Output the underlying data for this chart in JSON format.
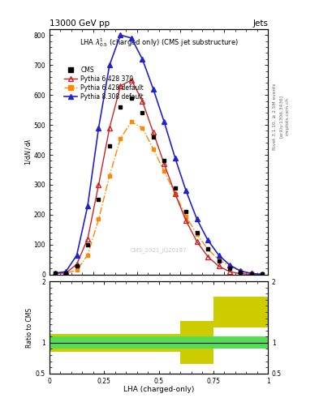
{
  "title_left": "13000 GeV pp",
  "title_right": "Jets",
  "plot_label": "LHA $\\lambda^{1}_{0.5}$ (charged only) (CMS jet substructure)",
  "xlabel": "LHA (charged-only)",
  "watermark": "CMS_2021_JQ20187",
  "right_text1": "Rivet 3.1.10, ≥ 2.5M events",
  "right_text2": "[arXiv:1306.3436]",
  "right_text3": "mcplots.cern.ch",
  "lha_x": [
    0.025,
    0.075,
    0.125,
    0.175,
    0.225,
    0.275,
    0.325,
    0.375,
    0.425,
    0.475,
    0.525,
    0.575,
    0.625,
    0.675,
    0.725,
    0.775,
    0.825,
    0.875,
    0.925,
    0.975
  ],
  "lha_bins": [
    0.0,
    0.05,
    0.1,
    0.15,
    0.2,
    0.25,
    0.3,
    0.35,
    0.4,
    0.45,
    0.5,
    0.55,
    0.6,
    0.65,
    0.7,
    0.75,
    0.8,
    0.85,
    0.9,
    0.95,
    1.0
  ],
  "cms_y": [
    5,
    5,
    30,
    100,
    250,
    430,
    560,
    590,
    540,
    460,
    380,
    290,
    210,
    140,
    85,
    45,
    20,
    8,
    2,
    1
  ],
  "p6_370_y": [
    5,
    5,
    35,
    120,
    300,
    490,
    630,
    650,
    580,
    475,
    370,
    270,
    180,
    110,
    60,
    28,
    10,
    3,
    1,
    0
  ],
  "p6_def_y": [
    5,
    5,
    15,
    65,
    185,
    330,
    455,
    510,
    490,
    420,
    345,
    270,
    195,
    135,
    85,
    50,
    28,
    12,
    4,
    1
  ],
  "p8_def_y": [
    5,
    10,
    65,
    230,
    490,
    700,
    800,
    790,
    720,
    620,
    510,
    390,
    280,
    185,
    115,
    65,
    32,
    12,
    4,
    1
  ],
  "yticks": [
    0,
    100,
    200,
    300,
    400,
    500,
    600,
    700,
    800
  ],
  "ylim_main": [
    0,
    820
  ],
  "ylim_ratio": [
    0.5,
    2.0
  ],
  "xlim": [
    0.0,
    1.0
  ],
  "ratio_bins": [
    0.0,
    0.1,
    0.2,
    0.3,
    0.4,
    0.5,
    0.6,
    0.65,
    0.75,
    1.0
  ],
  "ratio_green_lo": [
    0.9,
    0.9,
    0.9,
    0.9,
    0.9,
    0.9,
    0.9,
    0.9,
    0.9
  ],
  "ratio_green_hi": [
    1.1,
    1.1,
    1.1,
    1.1,
    1.1,
    1.1,
    1.1,
    1.1,
    1.1
  ],
  "ratio_yellow_lo": [
    0.85,
    0.85,
    0.85,
    0.85,
    0.85,
    0.85,
    0.65,
    0.65,
    1.25
  ],
  "ratio_yellow_hi": [
    1.15,
    1.15,
    1.15,
    1.15,
    1.15,
    1.15,
    1.35,
    1.35,
    1.75
  ],
  "color_cms": "#000000",
  "color_p6_370": "#cc2222",
  "color_p6_def": "#ff8800",
  "color_p8_def": "#2222cc",
  "color_green": "#55dd55",
  "color_yellow": "#cccc00"
}
